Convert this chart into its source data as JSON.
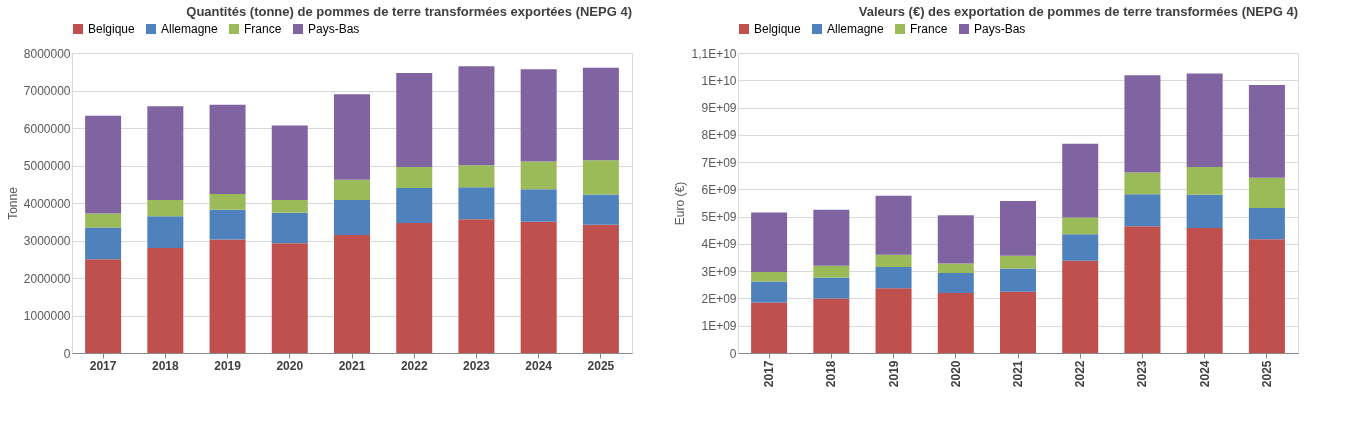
{
  "chart_data": [
    {
      "type": "bar",
      "stacked": true,
      "title": "Quantités (tonne) de pommes de terre transformées exportées (NEPG 4)",
      "ylabel": "Tonne",
      "categories": [
        "2017",
        "2018",
        "2019",
        "2020",
        "2021",
        "2022",
        "2023",
        "2024",
        "2025"
      ],
      "series": [
        {
          "name": "Belgique",
          "color": "#c0504d",
          "values": [
            2500000,
            2800000,
            3030000,
            2930000,
            3150000,
            3470000,
            3570000,
            3500000,
            3420000
          ]
        },
        {
          "name": "Allemagne",
          "color": "#4f81bd",
          "values": [
            850000,
            850000,
            790000,
            810000,
            930000,
            930000,
            850000,
            870000,
            810000
          ]
        },
        {
          "name": "France",
          "color": "#9bbb59",
          "values": [
            370000,
            430000,
            420000,
            340000,
            540000,
            560000,
            590000,
            740000,
            910000
          ]
        },
        {
          "name": "Pays-Bas",
          "color": "#8064a2",
          "values": [
            2610000,
            2500000,
            2380000,
            1990000,
            2280000,
            2510000,
            2640000,
            2460000,
            2470000
          ]
        }
      ],
      "ylim": [
        0,
        8000000
      ],
      "yticks": [
        0,
        1000000,
        2000000,
        3000000,
        4000000,
        5000000,
        6000000,
        7000000,
        8000000
      ],
      "grid": "y",
      "legend": "top"
    },
    {
      "type": "bar",
      "stacked": true,
      "title": "Valeurs (€) des exportation de pommes de terre transformées (NEPG 4)",
      "ylabel": "Euro (€)",
      "categories": [
        "2017",
        "2018",
        "2019",
        "2020",
        "2021",
        "2022",
        "2023",
        "2024",
        "2025"
      ],
      "series": [
        {
          "name": "Belgique",
          "color": "#c0504d",
          "values": [
            1850000000,
            2000000000,
            2370000000,
            2200000000,
            2250000000,
            3380000000,
            4650000000,
            4580000000,
            4170000000
          ]
        },
        {
          "name": "Allemagne",
          "color": "#4f81bd",
          "values": [
            770000000,
            770000000,
            780000000,
            730000000,
            850000000,
            970000000,
            1170000000,
            1220000000,
            1150000000
          ]
        },
        {
          "name": "France",
          "color": "#9bbb59",
          "values": [
            350000000,
            430000000,
            450000000,
            350000000,
            470000000,
            620000000,
            800000000,
            1020000000,
            1110000000
          ]
        },
        {
          "name": "Pays-Bas",
          "color": "#8064a2",
          "values": [
            2180000000,
            2050000000,
            2170000000,
            1770000000,
            2000000000,
            2700000000,
            3560000000,
            3430000000,
            3400000000
          ]
        }
      ],
      "ylim": [
        0,
        11000000000
      ],
      "yticks": [
        0,
        {
          "value": 1000000000,
          "label": "1E+09"
        },
        {
          "value": 2000000000,
          "label": "2E+09"
        },
        {
          "value": 3000000000,
          "label": "3E+09"
        },
        {
          "value": 4000000000,
          "label": "4E+09"
        },
        {
          "value": 5000000000,
          "label": "5E+09"
        },
        {
          "value": 6000000000,
          "label": "6E+09"
        },
        {
          "value": 7000000000,
          "label": "7E+09"
        },
        {
          "value": 8000000000,
          "label": "8E+09"
        },
        {
          "value": 9000000000,
          "label": "9E+09"
        },
        {
          "value": 10000000000,
          "label": "1E+10"
        },
        {
          "value": 11000000000,
          "label": "1,1E+10"
        }
      ],
      "grid": "y",
      "legend": "top"
    }
  ]
}
